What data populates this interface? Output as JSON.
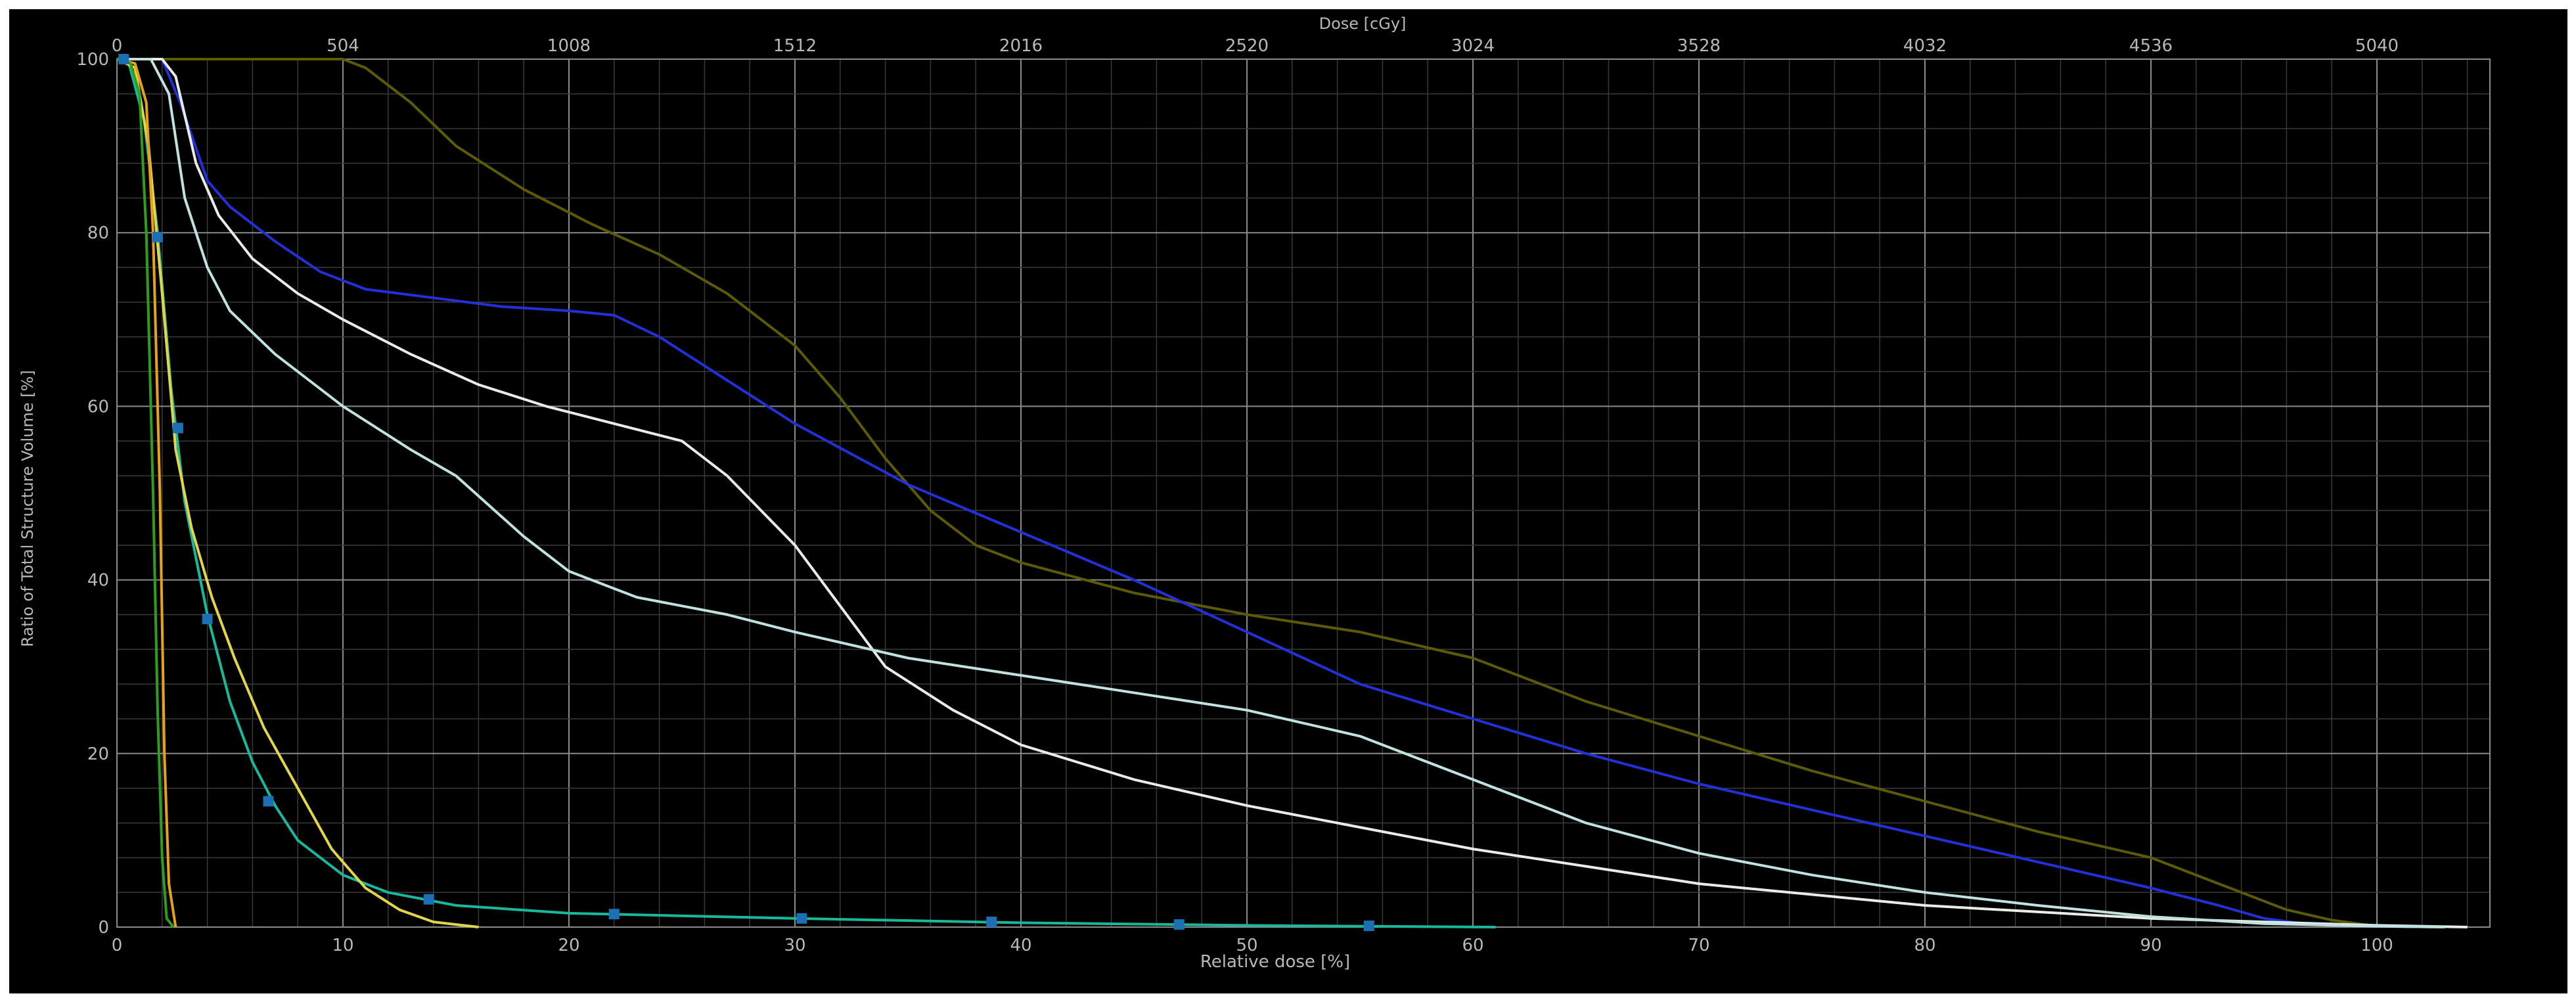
{
  "chart_data": {
    "type": "line",
    "top_axis_title": "Dose [cGy]",
    "xlabel": "Relative dose [%]",
    "ylabel": "Ratio of Total Structure Volume [%]",
    "xlim": [
      0,
      105
    ],
    "ylim": [
      0,
      100
    ],
    "x_ticks": [
      0,
      10,
      20,
      30,
      40,
      50,
      60,
      70,
      80,
      90,
      100
    ],
    "y_ticks": [
      0,
      20,
      40,
      60,
      80,
      100
    ],
    "top_ticks": [
      0,
      504,
      1008,
      1512,
      2016,
      2520,
      3024,
      3528,
      4032,
      4536,
      5040
    ],
    "grid": true,
    "background": "#000000",
    "series": [
      {
        "color": "#5c5a06",
        "points": [
          [
            0,
            100
          ],
          [
            10,
            100
          ],
          [
            11,
            99
          ],
          [
            13,
            95
          ],
          [
            15,
            90
          ],
          [
            18,
            85
          ],
          [
            21,
            81
          ],
          [
            24,
            77.5
          ],
          [
            27,
            73
          ],
          [
            30,
            67
          ],
          [
            32,
            61
          ],
          [
            34,
            54
          ],
          [
            36,
            48
          ],
          [
            38,
            44
          ],
          [
            40,
            42
          ],
          [
            45,
            38.5
          ],
          [
            50,
            36
          ],
          [
            55,
            34
          ],
          [
            60,
            31
          ],
          [
            65,
            26
          ],
          [
            70,
            22
          ],
          [
            75,
            18
          ],
          [
            80,
            14.5
          ],
          [
            85,
            11
          ],
          [
            90,
            8
          ],
          [
            93,
            5
          ],
          [
            96,
            2
          ],
          [
            98,
            0.8
          ],
          [
            100,
            0.1
          ],
          [
            103,
            0
          ]
        ]
      },
      {
        "color": "#2230d8",
        "points": [
          [
            0,
            100
          ],
          [
            2,
            100
          ],
          [
            2.8,
            95
          ],
          [
            4,
            86
          ],
          [
            5,
            83
          ],
          [
            7,
            79
          ],
          [
            9,
            75.5
          ],
          [
            11,
            73.5
          ],
          [
            14,
            72.5
          ],
          [
            17,
            71.5
          ],
          [
            20,
            71
          ],
          [
            22,
            70.5
          ],
          [
            24,
            68
          ],
          [
            27,
            63
          ],
          [
            30,
            58
          ],
          [
            35,
            51
          ],
          [
            40,
            45.5
          ],
          [
            45,
            40
          ],
          [
            50,
            34
          ],
          [
            55,
            28
          ],
          [
            60,
            24
          ],
          [
            65,
            20
          ],
          [
            70,
            16.5
          ],
          [
            75,
            13.5
          ],
          [
            80,
            10.5
          ],
          [
            85,
            7.5
          ],
          [
            90,
            4.5
          ],
          [
            93,
            2.5
          ],
          [
            95,
            1
          ],
          [
            97,
            0.3
          ],
          [
            100,
            0.1
          ],
          [
            103,
            0
          ]
        ]
      },
      {
        "color": "#e8ece6",
        "points": [
          [
            0,
            100
          ],
          [
            2,
            100
          ],
          [
            2.6,
            98
          ],
          [
            3.5,
            88
          ],
          [
            4.5,
            82
          ],
          [
            6,
            77
          ],
          [
            8,
            73
          ],
          [
            10,
            70
          ],
          [
            13,
            66
          ],
          [
            16,
            62.5
          ],
          [
            19,
            60
          ],
          [
            22,
            58
          ],
          [
            25,
            56
          ],
          [
            27,
            52
          ],
          [
            30,
            44
          ],
          [
            32,
            37
          ],
          [
            34,
            30
          ],
          [
            37,
            25
          ],
          [
            40,
            21
          ],
          [
            45,
            17
          ],
          [
            50,
            14
          ],
          [
            55,
            11.5
          ],
          [
            60,
            9
          ],
          [
            65,
            7
          ],
          [
            70,
            5
          ],
          [
            80,
            2.5
          ],
          [
            90,
            1
          ],
          [
            100,
            0.2
          ],
          [
            104,
            0
          ]
        ]
      },
      {
        "color": "#bfe1df",
        "points": [
          [
            0,
            100
          ],
          [
            1.5,
            100
          ],
          [
            2.3,
            96
          ],
          [
            3,
            84
          ],
          [
            4,
            76
          ],
          [
            5,
            71
          ],
          [
            7,
            66
          ],
          [
            10,
            60
          ],
          [
            13,
            55
          ],
          [
            15,
            52
          ],
          [
            18,
            45
          ],
          [
            20,
            41
          ],
          [
            23,
            38
          ],
          [
            27,
            36
          ],
          [
            30,
            34
          ],
          [
            35,
            31
          ],
          [
            40,
            29
          ],
          [
            45,
            27
          ],
          [
            50,
            25
          ],
          [
            55,
            22
          ],
          [
            60,
            17
          ],
          [
            65,
            12
          ],
          [
            70,
            8.5
          ],
          [
            75,
            6
          ],
          [
            80,
            4
          ],
          [
            85,
            2.5
          ],
          [
            90,
            1.2
          ],
          [
            95,
            0.4
          ],
          [
            100,
            0.1
          ],
          [
            103,
            0
          ]
        ]
      },
      {
        "color": "#17b89b",
        "points": [
          [
            0,
            100
          ],
          [
            0.5,
            99.8
          ],
          [
            1.2,
            93
          ],
          [
            1.8,
            80
          ],
          [
            2.4,
            62
          ],
          [
            3,
            49
          ],
          [
            4,
            36
          ],
          [
            5,
            26
          ],
          [
            6,
            19
          ],
          [
            7,
            14
          ],
          [
            8,
            10
          ],
          [
            10,
            6
          ],
          [
            12,
            4
          ],
          [
            15,
            2.5
          ],
          [
            20,
            1.6
          ],
          [
            30,
            1
          ],
          [
            40,
            0.5
          ],
          [
            50,
            0.2
          ],
          [
            61,
            0
          ]
        ]
      },
      {
        "color": "#e4d44a",
        "points": [
          [
            0,
            100
          ],
          [
            0.8,
            99
          ],
          [
            1.4,
            90
          ],
          [
            2,
            73
          ],
          [
            2.6,
            55
          ],
          [
            3.3,
            46
          ],
          [
            4.2,
            38
          ],
          [
            5.2,
            31
          ],
          [
            6.5,
            23
          ],
          [
            8,
            16
          ],
          [
            9.5,
            9
          ],
          [
            11,
            4.5
          ],
          [
            12.5,
            2
          ],
          [
            14,
            0.6
          ],
          [
            16,
            0
          ]
        ]
      },
      {
        "color": "#e6a31a",
        "points": [
          [
            0,
            100
          ],
          [
            0.8,
            99.5
          ],
          [
            1.3,
            95
          ],
          [
            1.6,
            80
          ],
          [
            1.9,
            50
          ],
          [
            2.1,
            20
          ],
          [
            2.3,
            5
          ],
          [
            2.6,
            0
          ]
        ]
      },
      {
        "color": "#2f9d1f",
        "points": [
          [
            0,
            100
          ],
          [
            0.6,
            99.5
          ],
          [
            1,
            96
          ],
          [
            1.3,
            80
          ],
          [
            1.6,
            50
          ],
          [
            1.8,
            25
          ],
          [
            2,
            8
          ],
          [
            2.2,
            1
          ],
          [
            2.5,
            0
          ]
        ]
      }
    ],
    "markers": {
      "color": "#1d6fb3",
      "points": [
        [
          0.3,
          100
        ],
        [
          1.8,
          79.5
        ],
        [
          2.7,
          57.5
        ],
        [
          4,
          35.5
        ],
        [
          6.7,
          14.5
        ],
        [
          13.8,
          3.2
        ],
        [
          22,
          1.5
        ],
        [
          30.3,
          1
        ],
        [
          38.7,
          0.6
        ],
        [
          47,
          0.3
        ],
        [
          55.4,
          0.15
        ]
      ]
    }
  }
}
